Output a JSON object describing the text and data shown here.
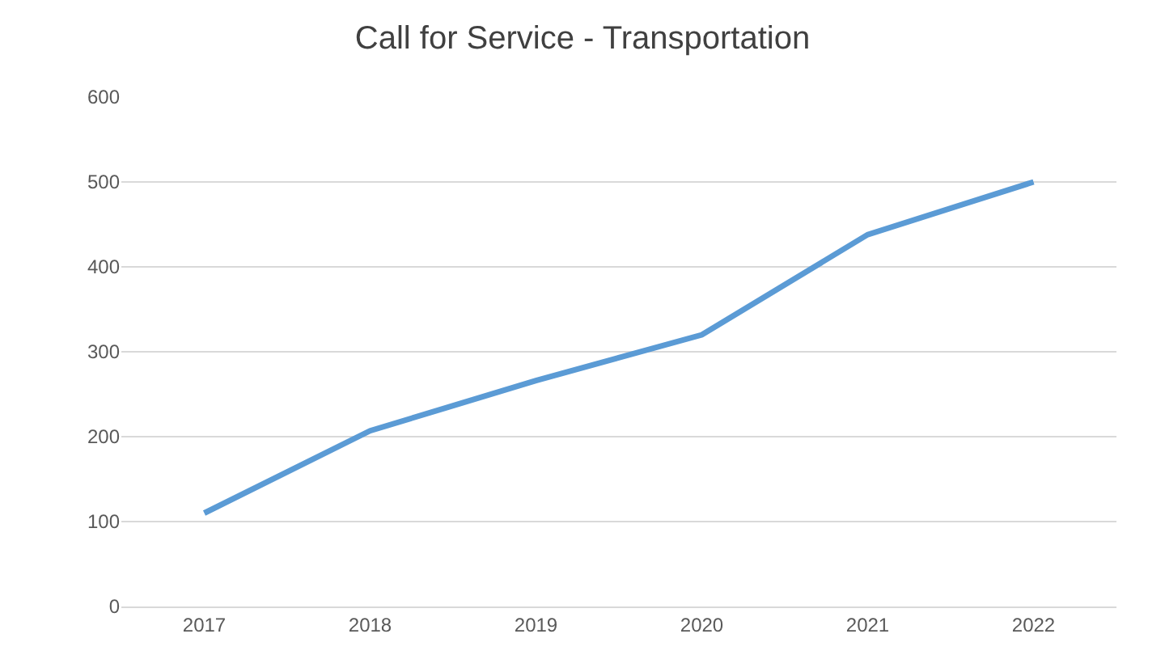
{
  "chart_data": {
    "type": "line",
    "title": "Call for Service - Transportation",
    "categories": [
      "2017",
      "2018",
      "2019",
      "2020",
      "2021",
      "2022"
    ],
    "series": [
      {
        "color": "#5b9bd5",
        "values": [
          110,
          207,
          266,
          320,
          438,
          500
        ]
      }
    ],
    "ylim": [
      0,
      600
    ],
    "yticks": [
      0,
      100,
      200,
      300,
      400,
      500,
      600
    ],
    "grid": "y",
    "marker": "none",
    "line_style": "solid"
  }
}
